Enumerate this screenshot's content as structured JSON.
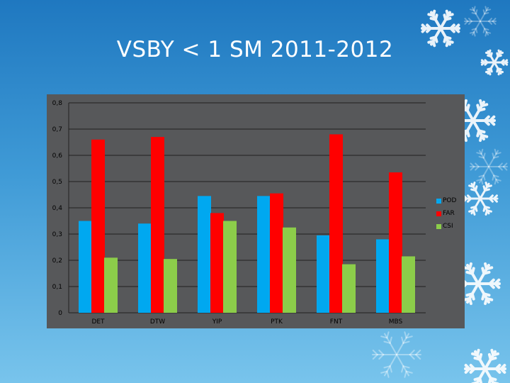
{
  "slide": {
    "title": "VSBY < 1 SM 2011-2012"
  },
  "colors": {
    "panel": "#57585a",
    "grid": "#202020",
    "POD": "#00a8f0",
    "FAR": "#ff0000",
    "CSI": "#8ccd4a"
  },
  "decor": {
    "icon": "snowflake-icon"
  },
  "chart_data": {
    "type": "bar",
    "title": "",
    "xlabel": "",
    "ylabel": "",
    "categories": [
      "DET",
      "DTW",
      "YIP",
      "PTK",
      "FNT",
      "MBS"
    ],
    "series": [
      {
        "name": "POD",
        "values": [
          0.35,
          0.34,
          0.445,
          0.445,
          0.295,
          0.28
        ]
      },
      {
        "name": "FAR",
        "values": [
          0.66,
          0.67,
          0.38,
          0.455,
          0.68,
          0.535
        ]
      },
      {
        "name": "CSI",
        "values": [
          0.21,
          0.205,
          0.35,
          0.325,
          0.185,
          0.215
        ]
      }
    ],
    "ylim": [
      0,
      0.8
    ],
    "yticks": [
      {
        "value": 0,
        "label": "0"
      },
      {
        "value": 0.1,
        "label": "0,1"
      },
      {
        "value": 0.2,
        "label": "0,2"
      },
      {
        "value": 0.3,
        "label": "0,3"
      },
      {
        "value": 0.4,
        "label": "0,4"
      },
      {
        "value": 0.5,
        "label": "0,5"
      },
      {
        "value": 0.6,
        "label": "0,6"
      },
      {
        "value": 0.7,
        "label": "0,7"
      },
      {
        "value": 0.8,
        "label": "0,8"
      }
    ],
    "grid": true,
    "legend": "right"
  }
}
